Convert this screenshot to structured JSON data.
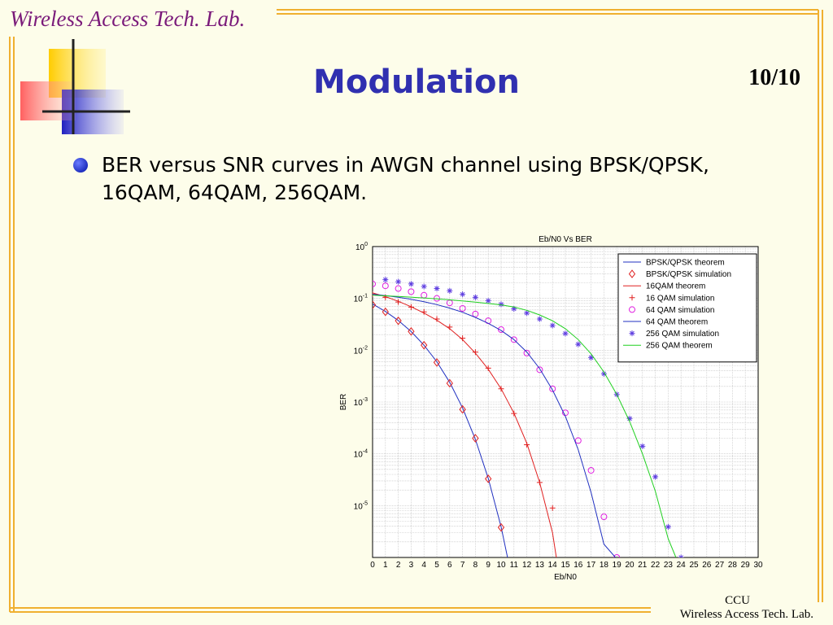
{
  "header": {
    "lab_name": "Wireless Access Tech. Lab."
  },
  "slide": {
    "title": "Modulation",
    "page_number": "10/10",
    "bullet": "BER versus SNR curves in AWGN channel using BPSK/QPSK, 16QAM, 64QAM, 256QAM."
  },
  "footer": {
    "line1": "CCU",
    "line2": "Wireless Access Tech. Lab."
  },
  "colors": {
    "border": "#f0b030",
    "title": "#3030b0",
    "header": "#7a1a7a"
  },
  "chart_data": {
    "type": "line",
    "title": "Eb/N0 Vs BER",
    "xlabel": "Eb/N0",
    "ylabel": "BER",
    "xlim": [
      0,
      30
    ],
    "ylim": [
      1e-06,
      1
    ],
    "y_scale": "log",
    "x_ticks": [
      0,
      1,
      2,
      3,
      4,
      5,
      6,
      7,
      8,
      9,
      10,
      11,
      12,
      13,
      14,
      15,
      16,
      17,
      18,
      19,
      20,
      21,
      22,
      23,
      24,
      25,
      26,
      27,
      28,
      29,
      30
    ],
    "y_ticks": [
      {
        "value": 1,
        "base": "10",
        "exp": "0"
      },
      {
        "value": 0.1,
        "base": "10",
        "exp": "-1"
      },
      {
        "value": 0.01,
        "base": "10",
        "exp": "-2"
      },
      {
        "value": 0.001,
        "base": "10",
        "exp": "-3"
      },
      {
        "value": 0.0001,
        "base": "10",
        "exp": "-4"
      },
      {
        "value": 1e-05,
        "base": "10",
        "exp": "-5"
      }
    ],
    "grid": true,
    "legend_position": "top-right",
    "series": [
      {
        "name": "BPSK/QPSK theorem",
        "color": "#2030c0",
        "kind": "line",
        "x": [
          0,
          1,
          2,
          3,
          4,
          5,
          6,
          7,
          8,
          9,
          10,
          10.5
        ],
        "y": [
          0.078,
          0.056,
          0.0375,
          0.0229,
          0.0125,
          0.006,
          0.0024,
          0.00077,
          0.00019,
          3.36e-05,
          3.9e-06,
          1e-06
        ]
      },
      {
        "name": "BPSK/QPSK simulation",
        "color": "#e02020",
        "kind": "marker",
        "marker": "diamond",
        "x": [
          0,
          1,
          2,
          3,
          4,
          5,
          6,
          7,
          8,
          9,
          10
        ],
        "y": [
          0.075,
          0.055,
          0.037,
          0.023,
          0.0125,
          0.0058,
          0.0023,
          0.00072,
          0.0002,
          3.3e-05,
          3.8e-06
        ]
      },
      {
        "name": "16QAM theorem",
        "color": "#e02020",
        "kind": "line",
        "x": [
          0,
          1,
          2,
          3,
          4,
          5,
          6,
          7,
          8,
          9,
          10,
          11,
          12,
          13,
          14,
          14.3
        ],
        "y": [
          0.128,
          0.108,
          0.088,
          0.069,
          0.052,
          0.038,
          0.026,
          0.016,
          0.0088,
          0.0043,
          0.0018,
          0.00061,
          0.00016,
          2.8e-05,
          3e-06,
          1e-06
        ]
      },
      {
        "name": "16 QAM simulation",
        "color": "#e02020",
        "kind": "marker",
        "marker": "plus",
        "x": [
          0,
          1,
          2,
          3,
          4,
          5,
          6,
          7,
          8,
          9,
          10,
          11,
          12,
          13,
          14
        ],
        "y": [
          0.12,
          0.105,
          0.085,
          0.068,
          0.055,
          0.04,
          0.028,
          0.017,
          0.0092,
          0.0045,
          0.0018,
          0.0006,
          0.00015,
          2.8e-05,
          9e-06
        ]
      },
      {
        "name": "64 QAM simulation",
        "color": "#e020e0",
        "kind": "marker",
        "marker": "circle",
        "x": [
          0,
          1,
          2,
          3,
          4,
          5,
          6,
          7,
          8,
          9,
          10,
          11,
          12,
          13,
          14,
          15,
          16,
          17,
          18,
          19
        ],
        "y": [
          0.19,
          0.175,
          0.155,
          0.135,
          0.115,
          0.1,
          0.082,
          0.064,
          0.05,
          0.037,
          0.025,
          0.016,
          0.0088,
          0.0042,
          0.0018,
          0.00062,
          0.00018,
          4.8e-05,
          6.1e-06,
          1e-06
        ]
      },
      {
        "name": "64 QAM theorem",
        "color": "#2030c0",
        "kind": "line",
        "x": [
          0,
          1,
          2,
          3,
          4,
          5,
          6,
          7,
          8,
          9,
          10,
          11,
          12,
          13,
          14,
          15,
          16,
          17,
          18,
          18.9
        ],
        "y": [
          0.12,
          0.113,
          0.105,
          0.096,
          0.086,
          0.076,
          0.065,
          0.054,
          0.043,
          0.033,
          0.024,
          0.016,
          0.0092,
          0.0044,
          0.0017,
          0.00053,
          0.00012,
          1.8e-05,
          1.8e-06,
          1e-06
        ]
      },
      {
        "name": "256 QAM simulation",
        "color": "#6040e0",
        "kind": "marker",
        "marker": "star",
        "x": [
          1,
          2,
          3,
          4,
          5,
          6,
          7,
          8,
          9,
          10,
          11,
          12,
          13,
          14,
          15,
          16,
          17,
          18,
          19,
          20,
          21,
          22,
          23,
          24
        ],
        "y": [
          0.23,
          0.21,
          0.19,
          0.17,
          0.155,
          0.14,
          0.12,
          0.105,
          0.09,
          0.077,
          0.063,
          0.052,
          0.04,
          0.03,
          0.021,
          0.013,
          0.0072,
          0.0035,
          0.0014,
          0.00048,
          0.00014,
          3.6e-05,
          3.9e-06,
          1e-06
        ]
      },
      {
        "name": "256 QAM theorem",
        "color": "#20d020",
        "kind": "line",
        "x": [
          0,
          2,
          4,
          6,
          8,
          10,
          11,
          12,
          13,
          14,
          15,
          16,
          17,
          18,
          19,
          20,
          21,
          22,
          23,
          23.6
        ],
        "y": [
          0.115,
          0.109,
          0.102,
          0.094,
          0.085,
          0.075,
          0.068,
          0.059,
          0.048,
          0.037,
          0.026,
          0.016,
          0.0085,
          0.0038,
          0.0014,
          0.00042,
          0.0001,
          1.9e-05,
          2.3e-06,
          1e-06
        ]
      }
    ]
  }
}
